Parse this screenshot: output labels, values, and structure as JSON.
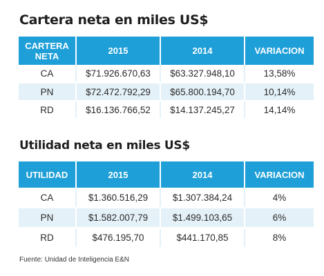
{
  "cartera": {
    "title": "Cartera neta en miles US$",
    "headers": {
      "label_line1": "CARTERA",
      "label_line2": "NETA",
      "y2015": "2015",
      "y2014": "2014",
      "variacion": "VARIACION"
    },
    "rows": [
      {
        "name": "CA",
        "y2015": "$71.926.670,63",
        "y2014": "$63.327.948,10",
        "variacion": "13,58%"
      },
      {
        "name": "PN",
        "y2015": "$72.472.792,29",
        "y2014": "$65.800.194,70",
        "variacion": "10,14%"
      },
      {
        "name": "RD",
        "y2015": "$16.136.766,52",
        "y2014": "$14.137.245,27",
        "variacion": "14,14%"
      }
    ]
  },
  "utilidad": {
    "title": "Utilidad neta en miles US$",
    "headers": {
      "label": "UTILIDAD",
      "y2015": "2015",
      "y2014": "2014",
      "variacion": "VARIACION"
    },
    "rows": [
      {
        "name": "CA",
        "y2015": "$1.360.516,29",
        "y2014": "$1.307.384,24",
        "variacion": "4%"
      },
      {
        "name": "PN",
        "y2015": "$1.582.007,79",
        "y2014": "$1.499.103,65",
        "variacion": "6%"
      },
      {
        "name": "RD",
        "y2015": "$476.195,70",
        "y2014": "$441.170,85",
        "variacion": "8%"
      }
    ]
  },
  "source": "Fuente: Unidad de Inteligencia E&N",
  "colors": {
    "header_blue": "#1e9fd8",
    "stripe_light_blue": "#e4f1f8",
    "title_text": "#1e1e1e"
  }
}
